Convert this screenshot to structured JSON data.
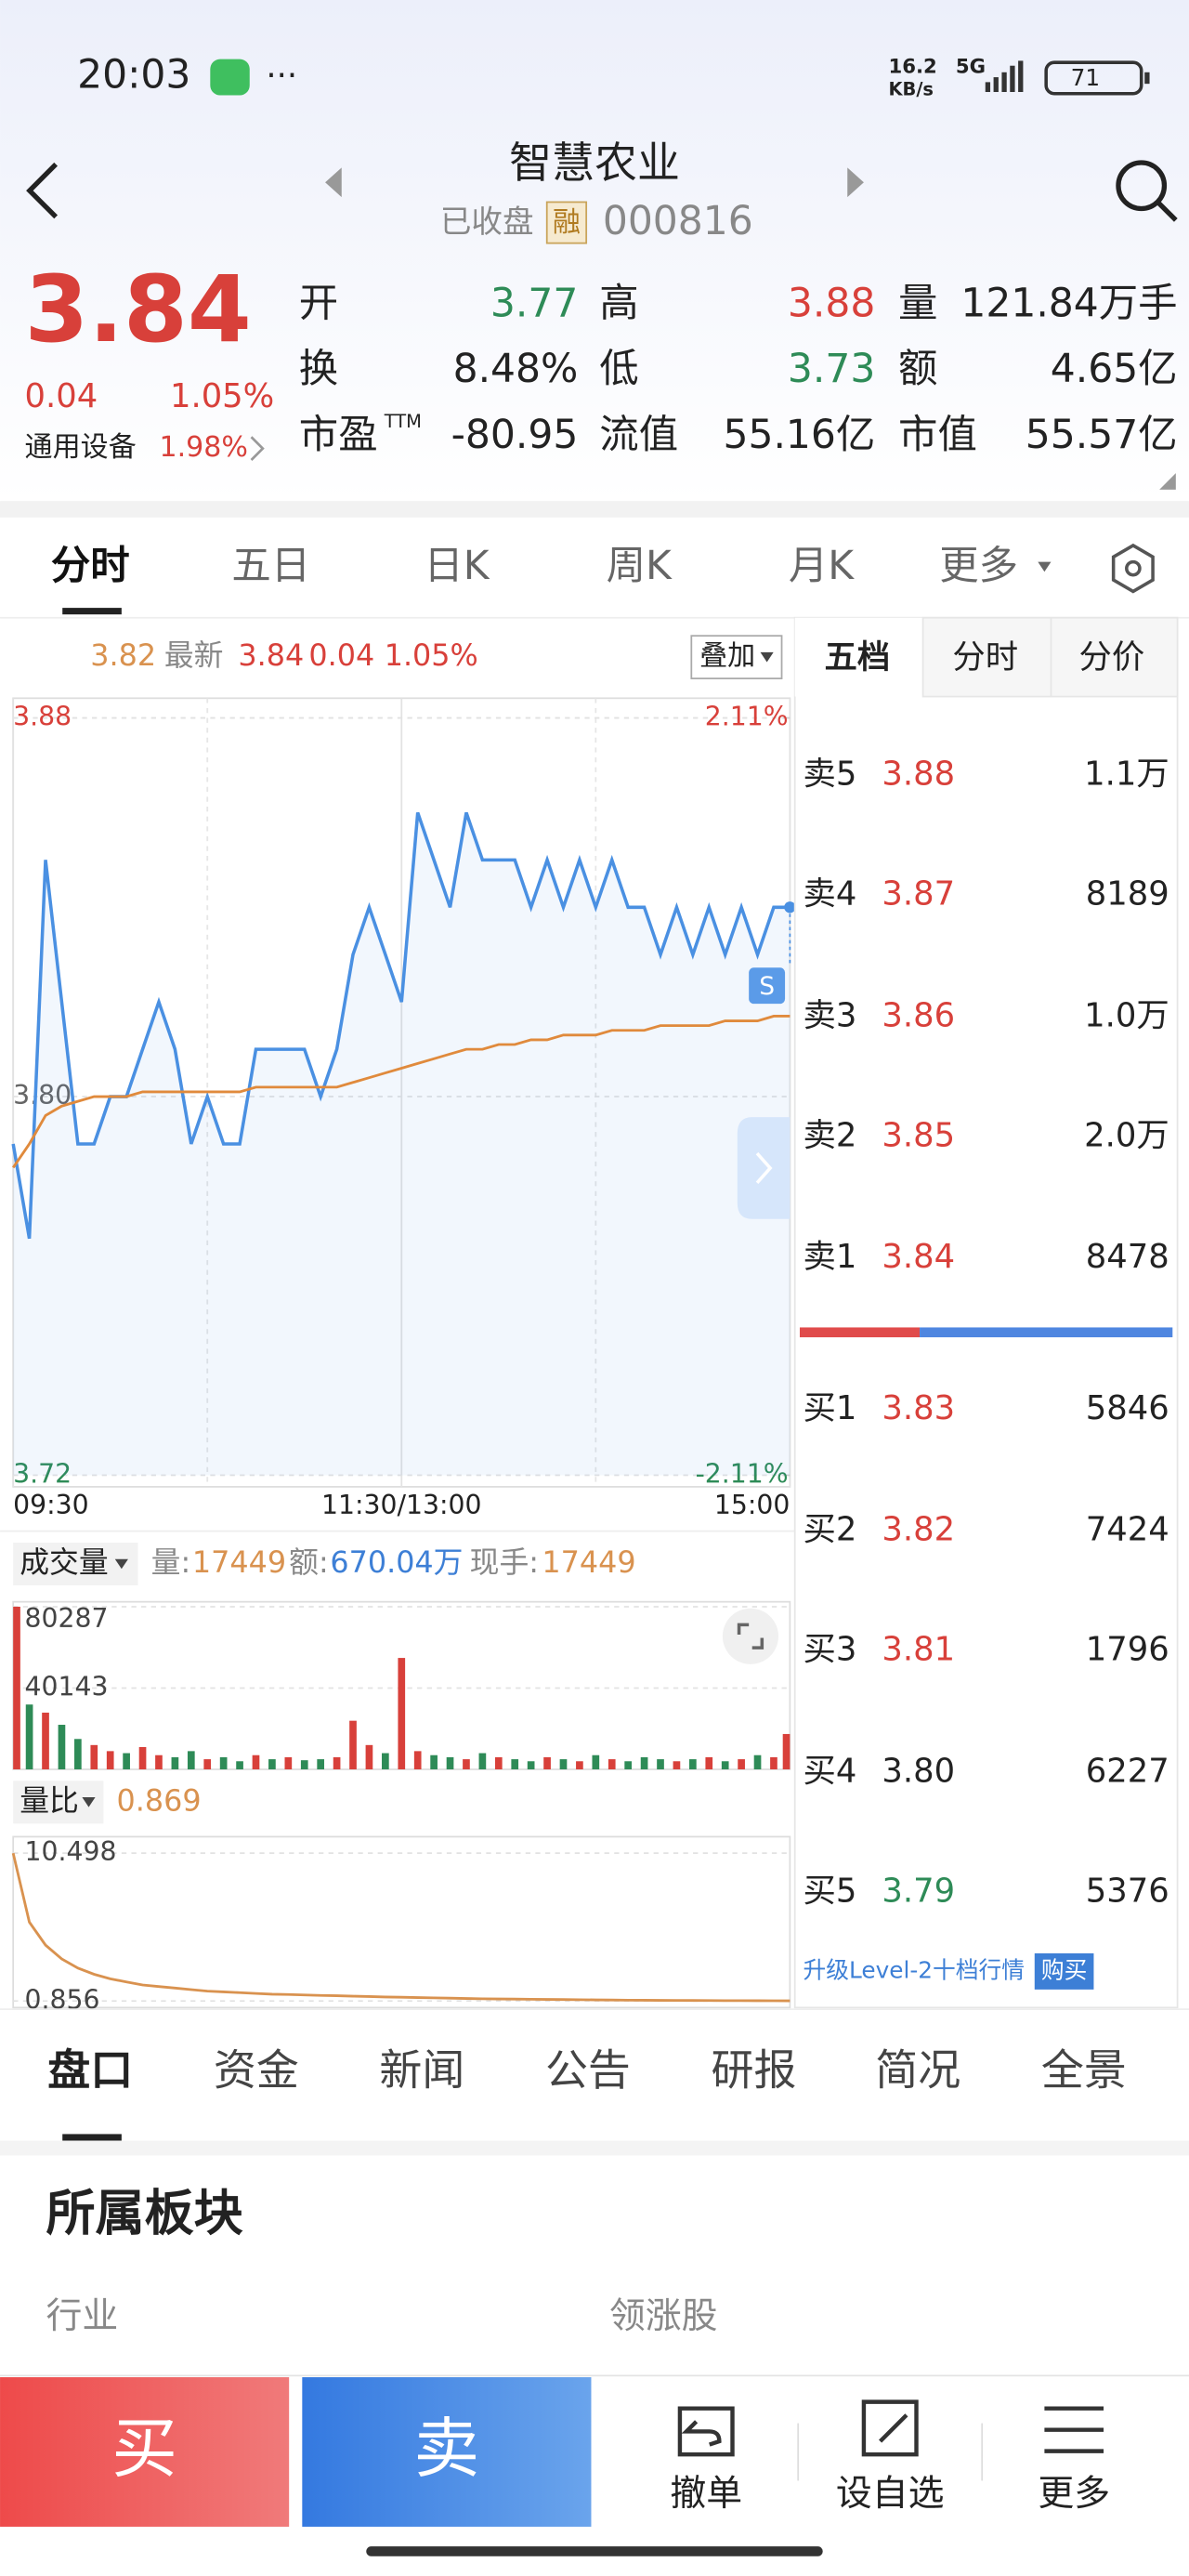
{
  "status_bar": {
    "time": "20:03",
    "net_speed": "16.2",
    "net_unit": "KB/s",
    "network": "5G",
    "battery": "71"
  },
  "header": {
    "title": "智慧农业",
    "status": "已收盘",
    "badge": "融",
    "code": "000816"
  },
  "quote": {
    "price": "3.84",
    "change": "0.04",
    "change_pct": "1.05%",
    "sector": "通用设备",
    "sector_pct": "1.98%",
    "stats": [
      {
        "label": "开",
        "value": "3.77"
      },
      {
        "label": "高",
        "value": "3.88"
      },
      {
        "label": "量",
        "value": "121.84万手"
      },
      {
        "label": "换",
        "value": "8.48%"
      },
      {
        "label": "低",
        "value": "3.73"
      },
      {
        "label": "额",
        "value": "4.65亿"
      },
      {
        "label": "市盈",
        "sup": "TTM",
        "value": "-80.95"
      },
      {
        "label": "流值",
        "value": "55.16亿"
      },
      {
        "label": "市值",
        "value": "55.57亿"
      }
    ]
  },
  "tabs": [
    "分时",
    "五日",
    "日K",
    "周K",
    "月K",
    "更多"
  ],
  "chart_info": {
    "avg": "3.82",
    "last": "3.84",
    "change": "0.04",
    "change_pct": "1.05%",
    "overlay": "叠加",
    "badge": "S"
  },
  "volume_info": {
    "vol_label": "量:",
    "vol": "17449",
    "amt_label": "额:",
    "amt": "670.04万",
    "hand_label": "现手:",
    "hand": "17449"
  },
  "ratio_info": {
    "value": "0.869"
  },
  "order_book": {
    "tabs": [
      "五档",
      "分时",
      "分价"
    ],
    "asks": [
      {
        "label": "卖5",
        "price": "3.88",
        "volume": "1.1万"
      },
      {
        "label": "卖4",
        "price": "3.87",
        "volume": "8189"
      },
      {
        "label": "卖3",
        "price": "3.86",
        "volume": "1.0万"
      },
      {
        "label": "卖2",
        "price": "3.85",
        "volume": "2.0万"
      },
      {
        "label": "卖1",
        "price": "3.84",
        "volume": "8478"
      }
    ],
    "bids": [
      {
        "label": "买1",
        "price": "3.83",
        "volume": "5846"
      },
      {
        "label": "买2",
        "price": "3.82",
        "volume": "7424"
      },
      {
        "label": "买3",
        "price": "3.81",
        "volume": "1796"
      },
      {
        "label": "买4",
        "price": "3.80",
        "volume": "6227"
      },
      {
        "label": "买5",
        "price": "3.79",
        "volume": "5376"
      }
    ],
    "upgrade": "升级Level-2十档行情",
    "buy": "购买"
  },
  "detail_tabs": [
    "盘口",
    "资金",
    "新闻",
    "公告",
    "研报",
    "简况",
    "全景"
  ],
  "section": {
    "title": "所属板块",
    "industry": "行业",
    "leader": "领涨股"
  },
  "actions": {
    "buy": "买",
    "sell": "卖",
    "cancel": "撤单",
    "watch": "设自选",
    "more": "更多"
  },
  "chart_data": [
    {
      "type": "line",
      "x": [
        0,
        5,
        10,
        15,
        20,
        25,
        30,
        35,
        40,
        45,
        50,
        55,
        60,
        65,
        70,
        75,
        80,
        85,
        90,
        95,
        100,
        105,
        110,
        115,
        120,
        125,
        130,
        135,
        140,
        145,
        150,
        155,
        160,
        165,
        170,
        175,
        180,
        185,
        190,
        195,
        200,
        205,
        210,
        215,
        220,
        225,
        230,
        235,
        240
      ],
      "xlim": [
        0,
        240
      ],
      "xticks": [
        {
          "value": 0,
          "label": "09:30"
        },
        {
          "value": 120,
          "label": "11:30/13:00"
        },
        {
          "value": 240,
          "label": "15:00"
        }
      ],
      "ylim": [
        3.72,
        3.88
      ],
      "yticks": [
        3.72,
        {
          "value": 3.8,
          "label": "3.80"
        },
        3.88
      ],
      "y2lim": [
        -2.11,
        2.11
      ],
      "y2ticks": [
        {
          "value": -2.11,
          "label": "-2.11%"
        },
        {
          "value": 2.11,
          "label": "2.11%"
        }
      ],
      "series": [
        {
          "name": "最新",
          "color": "#4a90e2",
          "values": [
            3.79,
            3.77,
            3.85,
            3.82,
            3.79,
            3.79,
            3.8,
            3.8,
            3.81,
            3.82,
            3.81,
            3.79,
            3.8,
            3.79,
            3.79,
            3.81,
            3.81,
            3.81,
            3.81,
            3.8,
            3.81,
            3.83,
            3.84,
            3.83,
            3.82,
            3.86,
            3.85,
            3.84,
            3.86,
            3.85,
            3.85,
            3.85,
            3.84,
            3.85,
            3.84,
            3.85,
            3.84,
            3.85,
            3.84,
            3.84,
            3.83,
            3.84,
            3.83,
            3.84,
            3.83,
            3.84,
            3.83,
            3.84,
            3.84
          ]
        },
        {
          "name": "均价",
          "color": "#e08a3c",
          "values": [
            3.785,
            3.79,
            3.796,
            3.798,
            3.799,
            3.8,
            3.8,
            3.8,
            3.801,
            3.801,
            3.801,
            3.801,
            3.801,
            3.801,
            3.801,
            3.802,
            3.802,
            3.802,
            3.802,
            3.802,
            3.802,
            3.803,
            3.804,
            3.805,
            3.806,
            3.807,
            3.808,
            3.809,
            3.81,
            3.81,
            3.811,
            3.811,
            3.812,
            3.812,
            3.813,
            3.813,
            3.813,
            3.814,
            3.814,
            3.814,
            3.815,
            3.815,
            3.815,
            3.815,
            3.816,
            3.816,
            3.816,
            3.817,
            3.817
          ]
        }
      ]
    },
    {
      "type": "bar",
      "title": "成交量",
      "x": [
        0,
        5,
        10,
        15,
        20,
        25,
        30,
        35,
        40,
        45,
        50,
        55,
        60,
        65,
        70,
        75,
        80,
        85,
        90,
        95,
        100,
        105,
        110,
        115,
        120,
        125,
        130,
        135,
        140,
        145,
        150,
        155,
        160,
        165,
        170,
        175,
        180,
        185,
        190,
        195,
        200,
        205,
        210,
        215,
        220,
        225,
        230,
        235,
        240
      ],
      "xlim": [
        0,
        240
      ],
      "ylim": [
        0,
        80287
      ],
      "yticks": [
        40143,
        80287
      ],
      "series": [
        {
          "colors": [
            "#d8403a",
            "#2e8b57",
            "#d8403a",
            "#2e8b57",
            "#2e8b57",
            "#d8403a",
            "#d8403a",
            "#2e8b57",
            "#d8403a",
            "#d8403a",
            "#2e8b57",
            "#2e8b57",
            "#d8403a",
            "#2e8b57",
            "#2e8b57",
            "#d8403a",
            "#2e8b57",
            "#d8403a",
            "#2e8b57",
            "#2e8b57",
            "#d8403a",
            "#d8403a",
            "#d8403a",
            "#2e8b57",
            "#d8403a",
            "#d8403a",
            "#2e8b57",
            "#2e8b57",
            "#d8403a",
            "#2e8b57",
            "#d8403a",
            "#2e8b57",
            "#2e8b57",
            "#d8403a",
            "#2e8b57",
            "#d8403a",
            "#2e8b57",
            "#d8403a",
            "#2e8b57",
            "#2e8b57",
            "#2e8b57",
            "#d8403a",
            "#2e8b57",
            "#d8403a",
            "#2e8b57",
            "#d8403a",
            "#2e8b57",
            "#d8403a",
            "#d8403a"
          ],
          "values": [
            80287,
            32000,
            28000,
            22000,
            15000,
            12000,
            9000,
            8000,
            11000,
            7000,
            6000,
            9000,
            5000,
            6000,
            4000,
            7000,
            5000,
            6000,
            4500,
            5000,
            6000,
            24000,
            12000,
            8000,
            55000,
            9000,
            7000,
            6000,
            5000,
            8000,
            6000,
            5000,
            4000,
            6000,
            5000,
            4000,
            7000,
            5000,
            4000,
            6000,
            5000,
            4000,
            5000,
            6000,
            4000,
            5000,
            7000,
            6000,
            17449
          ]
        }
      ]
    },
    {
      "type": "line",
      "title": "量比",
      "x": [
        0,
        5,
        10,
        15,
        20,
        25,
        30,
        35,
        40,
        45,
        50,
        55,
        60,
        65,
        70,
        75,
        80,
        85,
        90,
        95,
        100,
        105,
        110,
        115,
        120,
        125,
        130,
        135,
        140,
        145,
        150,
        155,
        160,
        165,
        170,
        175,
        180,
        185,
        190,
        195,
        200,
        205,
        210,
        215,
        220,
        225,
        230,
        235,
        240
      ],
      "xlim": [
        0,
        240
      ],
      "ylim": [
        0.856,
        10.498
      ],
      "yticks": [
        0.856,
        10.498
      ],
      "series": [
        {
          "color": "#d9924f",
          "values": [
            10.498,
            6,
            4.5,
            3.6,
            3,
            2.6,
            2.3,
            2.1,
            1.9,
            1.8,
            1.7,
            1.6,
            1.5,
            1.45,
            1.4,
            1.35,
            1.3,
            1.28,
            1.25,
            1.22,
            1.2,
            1.17,
            1.15,
            1.12,
            1.1,
            1.08,
            1.06,
            1.04,
            1.02,
            1.0,
            0.99,
            0.98,
            0.97,
            0.96,
            0.95,
            0.94,
            0.93,
            0.92,
            0.91,
            0.905,
            0.9,
            0.895,
            0.89,
            0.885,
            0.88,
            0.877,
            0.874,
            0.871,
            0.869
          ]
        }
      ]
    }
  ]
}
